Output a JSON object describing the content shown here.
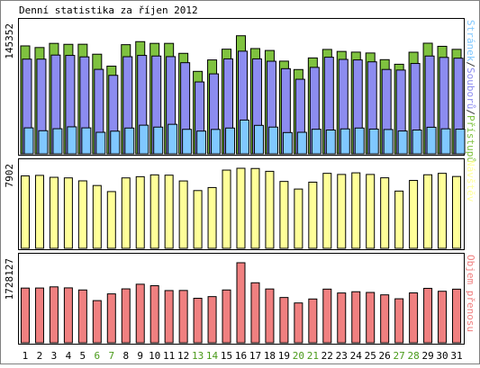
{
  "chart_data": {
    "type": "bar",
    "title": "Denní statistika za říjen 2012",
    "categories": [
      "1",
      "2",
      "3",
      "4",
      "5",
      "6",
      "7",
      "8",
      "9",
      "10",
      "11",
      "12",
      "13",
      "14",
      "15",
      "16",
      "17",
      "18",
      "19",
      "20",
      "21",
      "22",
      "23",
      "24",
      "25",
      "26",
      "27",
      "28",
      "29",
      "30",
      "31"
    ],
    "weekend_days": [
      "6",
      "7",
      "13",
      "14",
      "20",
      "21",
      "27",
      "28"
    ],
    "colors": {
      "pristupu": "#7fc23f",
      "souboru": "#8c8cf0",
      "stranek": "#80c8ff",
      "navstev": "#ffff99",
      "objem": "#f08080",
      "weekend_label": "#4a9a1a",
      "weekday_label": "#000000",
      "border": "#000000"
    },
    "panels": [
      {
        "id": "traffic",
        "axis_max_label": "145352",
        "legend_parts": [
          {
            "text": "Stránek",
            "color": "#80c8ff"
          },
          {
            "text": "/",
            "color": "#333333"
          },
          {
            "text": "Souborů",
            "color": "#8c8cf0"
          },
          {
            "text": "/",
            "color": "#333333"
          },
          {
            "text": "Přístupů",
            "color": "#7fc23f"
          }
        ],
        "ylim": [
          0,
          145352
        ],
        "series": [
          {
            "name": "Přístupů",
            "values": [
              124600,
              122700,
              127500,
              126400,
              126500,
              115000,
              101200,
              126000,
              129500,
              127500,
              127500,
              116000,
              95200,
              108400,
              120800,
              136300,
              121500,
              119300,
              107000,
              97300,
              110700,
              120500,
              118200,
              117400,
              116400,
              108700,
              103400,
              117300,
              127700,
              124100,
              120600
            ]
          },
          {
            "name": "Souborů",
            "values": [
              109300,
              109300,
              114000,
              113600,
              111900,
              97500,
              90600,
              112100,
              113600,
              112900,
              112200,
              105200,
              83000,
              92300,
              109600,
              118500,
              109600,
              106900,
              98300,
              86100,
              99800,
              111500,
              109000,
              108400,
              106200,
              97400,
              96700,
              104300,
              112900,
              111300,
              110400
            ]
          },
          {
            "name": "Stránek",
            "values": [
              30000,
              26700,
              29000,
              31200,
              30000,
              24900,
              26200,
              29800,
              33100,
              30900,
              34100,
              28300,
              26300,
              28200,
              29800,
              39000,
              32900,
              30900,
              24600,
              24900,
              28400,
              27500,
              28800,
              29800,
              28600,
              28100,
              26400,
              27500,
              30700,
              28900,
              28500
            ]
          }
        ]
      },
      {
        "id": "visits",
        "axis_max_label": "7902",
        "legend_parts": [
          {
            "text": "Návštěv",
            "color": "#ffff99"
          }
        ],
        "ylim": [
          0,
          7902
        ],
        "series": [
          {
            "name": "Návštěv",
            "values": [
              7150,
              7200,
              7010,
              6950,
              6660,
              6200,
              5600,
              6950,
              7070,
              7250,
              7220,
              6650,
              5700,
              6000,
              7720,
              7900,
              7880,
              7600,
              6600,
              5850,
              6530,
              7400,
              7290,
              7450,
              7290,
              6960,
              5650,
              6700,
              7260,
              7400,
              7090
            ]
          }
        ]
      },
      {
        "id": "volume",
        "axis_max_label": "1728127",
        "legend_parts": [
          {
            "text": "Objem přenosu",
            "color": "#f08080"
          }
        ],
        "ylim": [
          0,
          1728127
        ],
        "series": [
          {
            "name": "Objem přenosu",
            "values": [
              1181000,
              1182500,
              1207700,
              1185700,
              1140100,
              910600,
              1055900,
              1164000,
              1264200,
              1232400,
              1127400,
              1129500,
              960900,
              997000,
              1140100,
              1728100,
              1295500,
              1161700,
              977900,
              860100,
              945700,
              1158700,
              1075300,
              1102200,
              1086900,
              1035200,
              950000,
              1077500,
              1175400,
              1112200,
              1157600
            ]
          }
        ]
      }
    ]
  }
}
